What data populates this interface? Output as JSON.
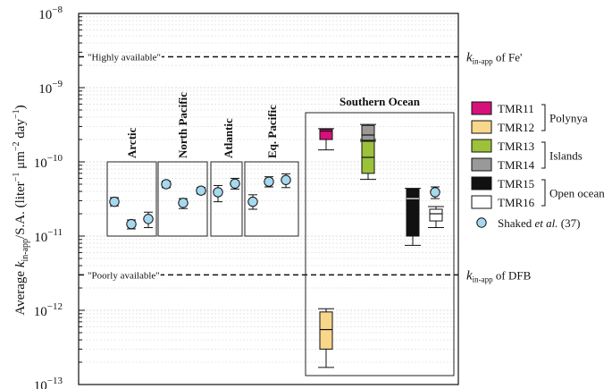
{
  "chart_data": {
    "type": "scatter",
    "ylabel": "Average k_in-app/S.A. (liter⁻¹ μm⁻² day⁻¹)",
    "ylabel_parts": {
      "prefix": "Average ",
      "k": "k",
      "sub": "in-app",
      "unit_open": "/S.A. (liter",
      "exp1": "−1",
      "mid": " μm",
      "exp2": "−2",
      "mid2": " day",
      "exp3": "−1",
      "close": ")"
    },
    "yscale": "log",
    "ylim": [
      1e-13,
      1e-08
    ],
    "y_ticks": [
      {
        "value": 1e-08,
        "base": "10",
        "exp": "−8"
      },
      {
        "value": 1e-09,
        "base": "10",
        "exp": "−9"
      },
      {
        "value": 1e-10,
        "base": "10",
        "exp": "−10"
      },
      {
        "value": 1e-11,
        "base": "10",
        "exp": "−11"
      },
      {
        "value": 1e-12,
        "base": "10",
        "exp": "−12"
      },
      {
        "value": 1e-13,
        "base": "10",
        "exp": "−13"
      }
    ],
    "grid": true,
    "reference_lines": [
      {
        "name": "highly-available",
        "y": 2.6e-09,
        "label": "\"Highly available\"",
        "right_k": "k",
        "right_sub": "in-app",
        "right_suffix": " of Fe'"
      },
      {
        "name": "poorly-available",
        "y": 3e-12,
        "label": "\"Poorly available\"",
        "right_k": "k",
        "right_sub": "in-app",
        "right_suffix": " of DFB"
      }
    ],
    "regions": [
      {
        "name": "arctic",
        "label": "Arctic"
      },
      {
        "name": "north-pacific",
        "label": "North Pacific"
      },
      {
        "name": "atlantic",
        "label": "Atlantic"
      },
      {
        "name": "eq-pacific",
        "label": "Eq. Pacific"
      },
      {
        "name": "southern-ocean",
        "label": "Southern Ocean"
      }
    ],
    "shaked_points": [
      {
        "region": "arctic",
        "y": 2.9e-11,
        "low": 2.55e-11,
        "high": 3.3e-11
      },
      {
        "region": "arctic",
        "y": 1.45e-11,
        "low": 1.25e-11,
        "high": 1.65e-11
      },
      {
        "region": "arctic",
        "y": 1.7e-11,
        "low": 1.3e-11,
        "high": 2.1e-11
      },
      {
        "region": "north-pacific",
        "y": 5e-11,
        "low": 4.5e-11,
        "high": 5.5e-11
      },
      {
        "region": "north-pacific",
        "y": 2.8e-11,
        "low": 2.35e-11,
        "high": 3.2e-11
      },
      {
        "region": "north-pacific",
        "y": 4.1e-11,
        "low": 3.7e-11,
        "high": 4.5e-11
      },
      {
        "region": "atlantic",
        "y": 3.9e-11,
        "low": 2.9e-11,
        "high": 4.8e-11
      },
      {
        "region": "atlantic",
        "y": 5.1e-11,
        "low": 4.3e-11,
        "high": 6e-11
      },
      {
        "region": "eq-pacific",
        "y": 2.9e-11,
        "low": 2.3e-11,
        "high": 3.6e-11
      },
      {
        "region": "eq-pacific",
        "y": 5.4e-11,
        "low": 4.6e-11,
        "high": 6.3e-11
      },
      {
        "region": "eq-pacific",
        "y": 5.7e-11,
        "low": 4.5e-11,
        "high": 6.9e-11
      },
      {
        "region": "southern-ocean",
        "y": 3.9e-11,
        "low": 3.2e-11,
        "high": 4.6e-11
      }
    ],
    "boxes": [
      {
        "name": "TMR11",
        "color": "#d6117a",
        "q1": 2e-10,
        "median": 2.6e-10,
        "q3": 2.75e-10,
        "whisker_low": 1.45e-10,
        "whisker_high": 2.8e-10
      },
      {
        "name": "TMR12",
        "color": "#f8d68a",
        "q1": 3e-13,
        "median": 5.5e-13,
        "q3": 9.5e-13,
        "whisker_low": 1.7e-13,
        "whisker_high": 1.05e-12
      },
      {
        "name": "TMR13",
        "color": "#9cc13a",
        "q1": 7e-11,
        "median": 1.15e-10,
        "q3": 1.9e-10,
        "whisker_low": 5.8e-11,
        "whisker_high": 2e-10
      },
      {
        "name": "TMR14",
        "color": "#999999",
        "q1": 1.95e-10,
        "median": 2.3e-10,
        "q3": 3.1e-10,
        "whisker_low": 1.9e-10,
        "whisker_high": 3.2e-10
      },
      {
        "name": "TMR15",
        "color": "#111111",
        "q1": 1e-11,
        "median": 3.2e-11,
        "q3": 4.3e-11,
        "whisker_low": 7.5e-12,
        "whisker_high": 4.4e-11
      },
      {
        "name": "TMR16",
        "color": "#ffffff",
        "q1": 1.6e-11,
        "median": 2e-11,
        "q3": 2.3e-11,
        "whisker_low": 1.3e-11,
        "whisker_high": 2.5e-11
      }
    ],
    "legend": {
      "placement": "right",
      "entries": [
        {
          "name": "TMR11",
          "color": "#d6117a"
        },
        {
          "name": "TMR12",
          "color": "#f8d68a"
        },
        {
          "name": "TMR13",
          "color": "#9cc13a"
        },
        {
          "name": "TMR14",
          "color": "#999999"
        },
        {
          "name": "TMR15",
          "color": "#111111"
        },
        {
          "name": "TMR16",
          "color": "#ffffff"
        }
      ],
      "groups": [
        {
          "label": "Polynya"
        },
        {
          "label": "Islands"
        },
        {
          "label": "Open ocean"
        }
      ],
      "shaked": {
        "prefix": "Shaked ",
        "italic": "et al.",
        "suffix": " (37)",
        "color": "#a6d8ef"
      }
    }
  }
}
